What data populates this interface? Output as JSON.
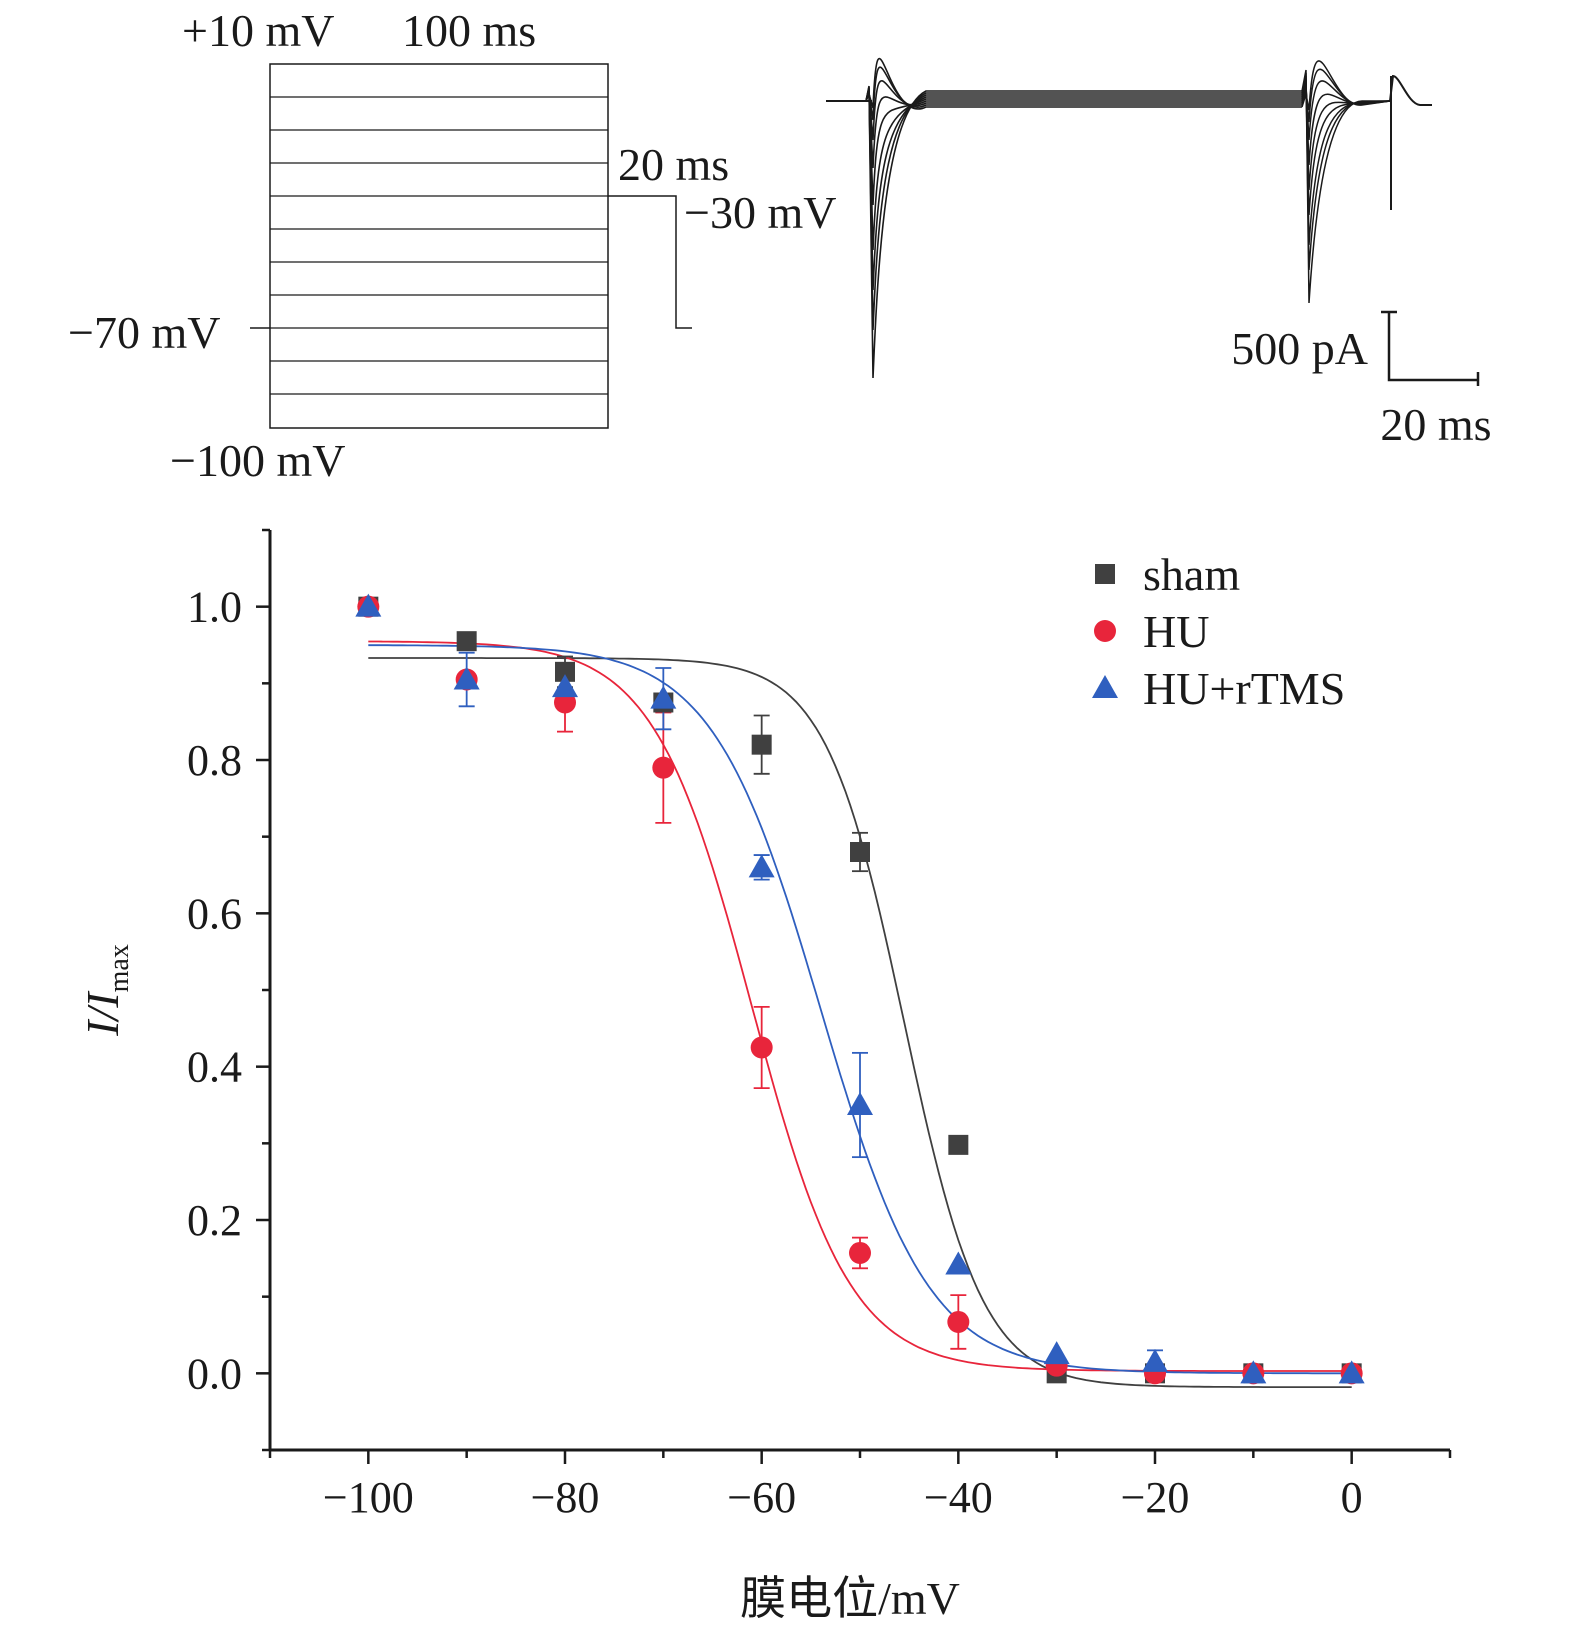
{
  "protocol": {
    "top_voltage": "+10 mV",
    "duration_long": "100 ms",
    "duration_short": "20 ms",
    "test_voltage": "−30 mV",
    "hold_voltage": "−70 mV",
    "bottom_voltage": "−100 mV"
  },
  "traces": {
    "scale_current": "500 pA",
    "scale_time": "20 ms"
  },
  "colors": {
    "sham": "#404040",
    "HU": "#e8253b",
    "HU_rTMS": "#2f5fbf",
    "axis": "#1a1a1a"
  },
  "chart_data": {
    "type": "scatter",
    "title": "",
    "xlabel": "膜电位/mV",
    "ylabel": "I/Imax",
    "ylabel_main": "I/I",
    "ylabel_sub": "max",
    "xlim": [
      -110,
      10
    ],
    "ylim": [
      -0.1,
      1.1
    ],
    "xticks": [
      -100,
      -80,
      -60,
      -40,
      -20,
      0
    ],
    "xtick_labels": [
      "−100",
      "−80",
      "−60",
      "−40",
      "−20",
      "0"
    ],
    "yticks": [
      0.0,
      0.2,
      0.4,
      0.6,
      0.8,
      1.0
    ],
    "ytick_labels": [
      "0.0",
      "0.2",
      "0.4",
      "0.6",
      "0.8",
      "1.0"
    ],
    "legend_position": "top-right",
    "x": [
      -100,
      -90,
      -80,
      -70,
      -60,
      -50,
      -40,
      -30,
      -20,
      -10,
      0
    ],
    "series": [
      {
        "name": "sham",
        "marker": "square",
        "values": [
          1.0,
          0.955,
          0.915,
          0.875,
          0.82,
          0.68,
          0.298,
          0.0,
          0.0,
          0.0,
          0.0
        ],
        "errors": [
          0.0,
          0.0,
          0.02,
          0.0,
          0.038,
          0.025,
          0.0,
          0.0,
          0.0,
          0.0,
          0.0
        ],
        "fit": {
          "top": 0.933,
          "bottom": -0.018,
          "v_half": -45.5,
          "slope": 4.0
        }
      },
      {
        "name": "HU",
        "marker": "circle",
        "values": [
          1.0,
          0.905,
          0.875,
          0.79,
          0.425,
          0.157,
          0.067,
          0.01,
          0.0,
          0.0,
          0.0
        ],
        "errors": [
          0.0,
          0.0,
          0.038,
          0.072,
          0.053,
          0.02,
          0.035,
          0.0,
          0.0,
          0.0,
          0.0
        ],
        "fit": {
          "top": 0.955,
          "bottom": 0.003,
          "v_half": -61.0,
          "slope": 5.0
        }
      },
      {
        "name": "HU+rTMS",
        "marker": "triangle",
        "values": [
          1.0,
          0.905,
          0.895,
          0.88,
          0.66,
          0.35,
          0.142,
          0.025,
          0.015,
          0.0,
          0.0
        ],
        "errors": [
          0.0,
          0.035,
          0.0,
          0.04,
          0.016,
          0.068,
          0.0,
          0.0,
          0.015,
          0.0,
          0.0
        ],
        "fit": {
          "top": 0.95,
          "bottom": 0.0,
          "v_half": -54.0,
          "slope": 5.5
        }
      }
    ]
  }
}
